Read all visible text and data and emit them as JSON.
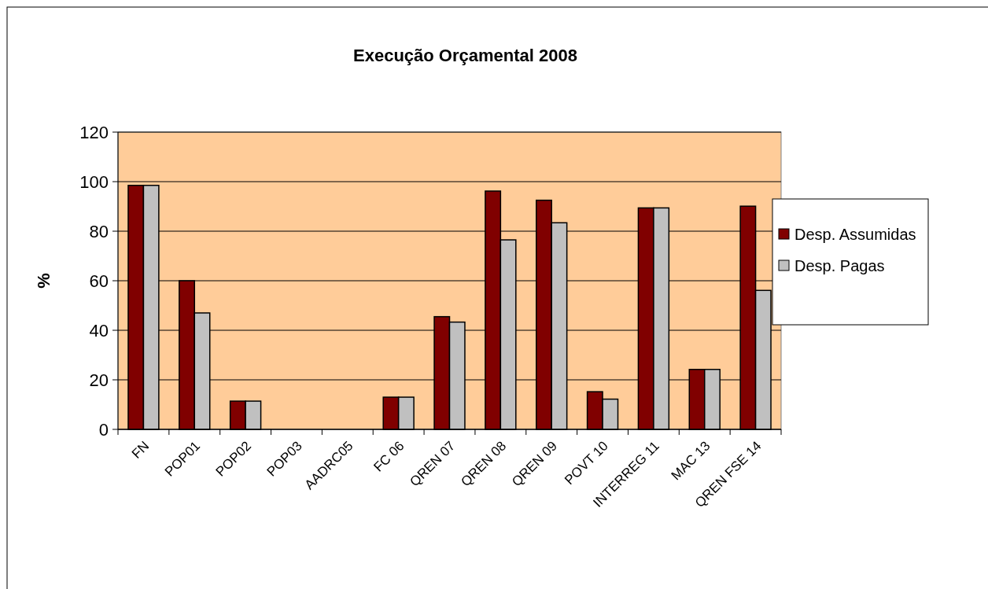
{
  "chart_data": {
    "type": "bar",
    "title": "Execução Orçamental 2008",
    "ylabel": "%",
    "categories": [
      "FN",
      "POP01",
      "POP02",
      "POP03",
      "AADRC05",
      "FC 06",
      "QREN 07",
      "QREN 08",
      "QREN 09",
      "POVT 10",
      "INTERREG 11",
      "MAC 13",
      "QREN FSE 14"
    ],
    "series": [
      {
        "name": "Desp. Assumidas",
        "color": "#800000",
        "values": [
          98.5,
          60,
          11.4,
          0,
          0,
          13,
          45.5,
          96.2,
          92.5,
          15.2,
          89.4,
          24.2,
          90.1
        ]
      },
      {
        "name": "Desp. Pagas",
        "color": "#c0c0c0",
        "values": [
          98.5,
          47,
          11.4,
          0,
          0,
          13,
          43.3,
          76.5,
          83.4,
          12.2,
          89.4,
          24.2,
          56.1
        ]
      }
    ],
    "ylim": [
      0,
      120
    ],
    "yticks": [
      0,
      20,
      40,
      60,
      80,
      100,
      120
    ],
    "grid": "y",
    "legend": "right"
  }
}
